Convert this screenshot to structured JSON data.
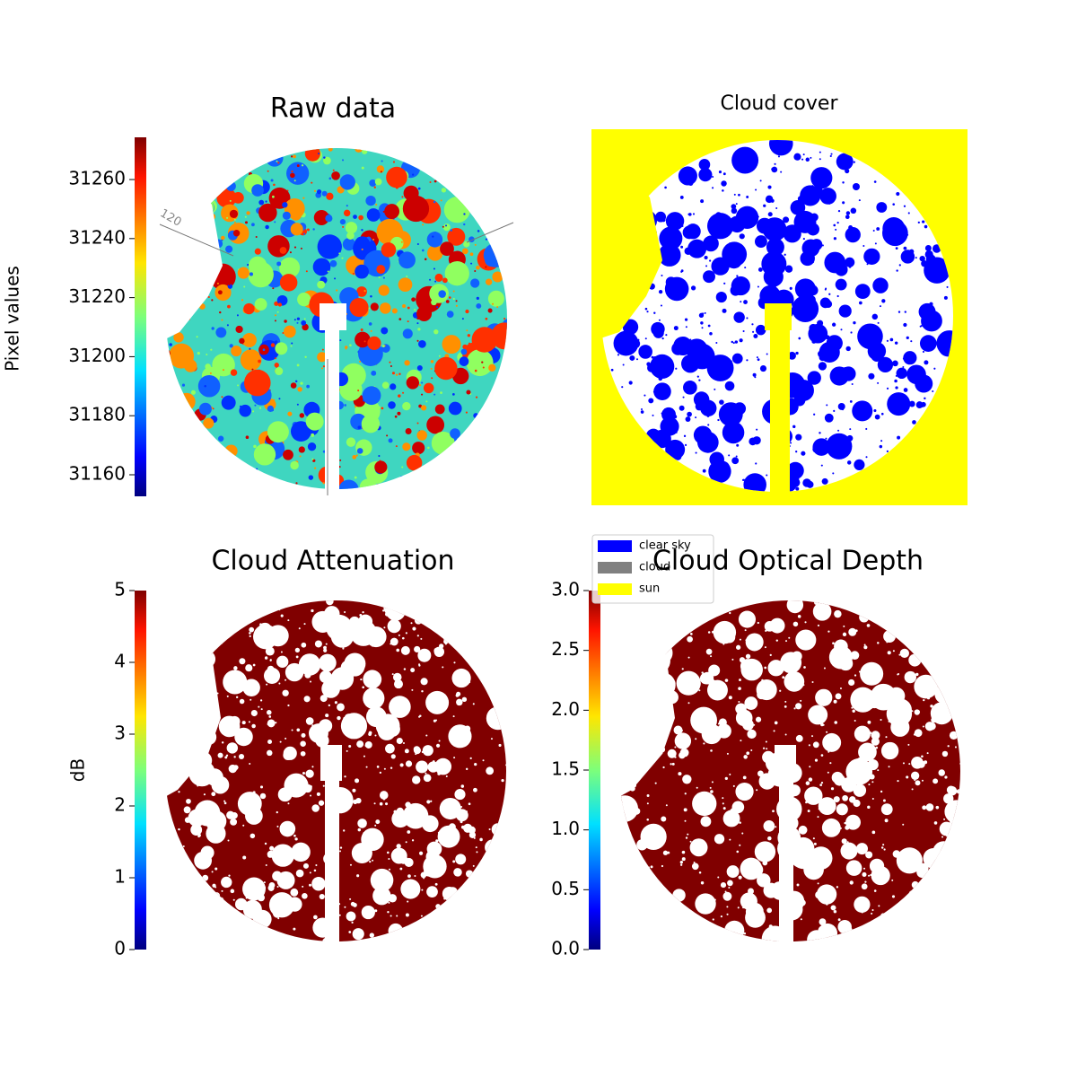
{
  "chart_data": [
    {
      "type": "image",
      "title": "Raw data",
      "colorbar_label": "Pixel values",
      "ylim": [
        31152.7,
        31274.3
      ],
      "yticks": [
        31160,
        31180,
        31200,
        31220,
        31240,
        31260
      ],
      "annotations": [
        "120"
      ]
    },
    {
      "type": "image",
      "title": "Cloud cover",
      "legend": "lower left",
      "series": [
        {
          "name": "clear sky",
          "color": "#0000ff"
        },
        {
          "name": "cloud",
          "color": "#808080"
        },
        {
          "name": "sun",
          "color": "#ffff00"
        }
      ]
    },
    {
      "type": "image",
      "title": "Cloud Attenuation",
      "colorbar_label": "dB",
      "ylim": [
        0,
        5
      ],
      "yticks": [
        0,
        1,
        2,
        3,
        4,
        5
      ]
    },
    {
      "type": "image",
      "title": "Cloud Optical Depth",
      "ylim": [
        0,
        3
      ],
      "yticks": [
        {
          "value": 0,
          "label": "0.0"
        },
        0.5,
        {
          "value": 1,
          "label": "1.0"
        },
        1.5,
        {
          "value": 2,
          "label": "2.0"
        },
        2.5,
        {
          "value": 3,
          "label": "3.0"
        }
      ]
    }
  ]
}
